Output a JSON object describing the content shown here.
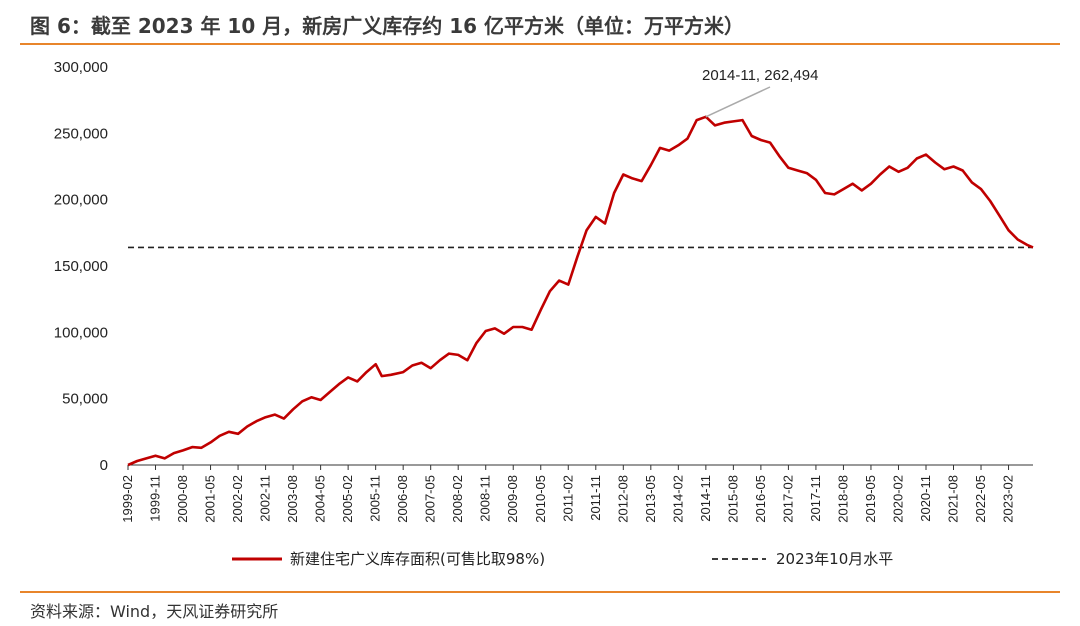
{
  "header": {
    "title": "图 6：截至 2023 年 10 月，新房广义库存约 16 亿平方米（单位：万平方米）"
  },
  "footer": {
    "source": "资料来源：Wind，天风证券研究所"
  },
  "colors": {
    "series_main": "#c00000",
    "reference_line": "#222222",
    "accent_rule": "#e8852b"
  },
  "chart_data": {
    "type": "line",
    "title": "",
    "ylim": [
      0,
      300000
    ],
    "y_ticks": [
      0,
      50000,
      100000,
      150000,
      200000,
      250000,
      300000
    ],
    "y_tick_labels": [
      "0",
      "50,000",
      "100,000",
      "150,000",
      "200,000",
      "250,000",
      "300,000"
    ],
    "x_range": [
      "1999-02",
      "2023-10"
    ],
    "x_tick_labels": [
      "1999-02",
      "1999-11",
      "2000-08",
      "2001-05",
      "2002-02",
      "2002-11",
      "2003-08",
      "2004-05",
      "2005-02",
      "2005-11",
      "2006-08",
      "2007-05",
      "2008-02",
      "2008-11",
      "2009-08",
      "2010-05",
      "2011-02",
      "2011-11",
      "2012-08",
      "2013-05",
      "2014-02",
      "2014-11",
      "2015-08",
      "2016-05",
      "2017-02",
      "2017-11",
      "2018-08",
      "2019-05",
      "2020-02",
      "2020-11",
      "2021-08",
      "2022-05",
      "2023-02"
    ],
    "grid": false,
    "legend_position": "bottom",
    "series": [
      {
        "name": "新建住宅广义库存面积(可售比取98%)",
        "style": "solid",
        "points": [
          [
            "1999-02",
            0
          ],
          [
            "1999-05",
            3000
          ],
          [
            "1999-08",
            5000
          ],
          [
            "1999-11",
            7000
          ],
          [
            "2000-02",
            5000
          ],
          [
            "2000-05",
            9000
          ],
          [
            "2000-08",
            11000
          ],
          [
            "2000-11",
            13500
          ],
          [
            "2001-02",
            13000
          ],
          [
            "2001-05",
            17000
          ],
          [
            "2001-08",
            22000
          ],
          [
            "2001-11",
            25000
          ],
          [
            "2002-02",
            23500
          ],
          [
            "2002-05",
            29000
          ],
          [
            "2002-08",
            33000
          ],
          [
            "2002-11",
            36000
          ],
          [
            "2003-02",
            38000
          ],
          [
            "2003-05",
            35000
          ],
          [
            "2003-08",
            42000
          ],
          [
            "2003-11",
            48000
          ],
          [
            "2004-02",
            51000
          ],
          [
            "2004-05",
            49000
          ],
          [
            "2004-08",
            55000
          ],
          [
            "2004-11",
            61000
          ],
          [
            "2005-02",
            66000
          ],
          [
            "2005-05",
            63000
          ],
          [
            "2005-08",
            70000
          ],
          [
            "2005-11",
            76000
          ],
          [
            "2006-01",
            67000
          ],
          [
            "2006-04",
            68000
          ],
          [
            "2006-08",
            70000
          ],
          [
            "2006-11",
            75000
          ],
          [
            "2007-02",
            77000
          ],
          [
            "2007-05",
            73000
          ],
          [
            "2007-08",
            79000
          ],
          [
            "2007-11",
            84000
          ],
          [
            "2008-02",
            83000
          ],
          [
            "2008-05",
            79000
          ],
          [
            "2008-08",
            92000
          ],
          [
            "2008-11",
            101000
          ],
          [
            "2009-02",
            103000
          ],
          [
            "2009-05",
            99000
          ],
          [
            "2009-08",
            104000
          ],
          [
            "2009-11",
            104000
          ],
          [
            "2010-02",
            102000
          ],
          [
            "2010-05",
            117000
          ],
          [
            "2010-08",
            131000
          ],
          [
            "2010-11",
            139000
          ],
          [
            "2011-02",
            136000
          ],
          [
            "2011-05",
            157000
          ],
          [
            "2011-08",
            177000
          ],
          [
            "2011-11",
            187000
          ],
          [
            "2012-02",
            182000
          ],
          [
            "2012-05",
            205000
          ],
          [
            "2012-08",
            219000
          ],
          [
            "2012-11",
            216000
          ],
          [
            "2013-02",
            214000
          ],
          [
            "2013-05",
            226000
          ],
          [
            "2013-08",
            239000
          ],
          [
            "2013-11",
            237000
          ],
          [
            "2014-02",
            241000
          ],
          [
            "2014-05",
            246000
          ],
          [
            "2014-08",
            260000
          ],
          [
            "2014-11",
            262494
          ],
          [
            "2015-02",
            256000
          ],
          [
            "2015-05",
            258000
          ],
          [
            "2015-08",
            259000
          ],
          [
            "2015-11",
            260000
          ],
          [
            "2016-02",
            248000
          ],
          [
            "2016-05",
            245000
          ],
          [
            "2016-08",
            243000
          ],
          [
            "2016-11",
            233000
          ],
          [
            "2017-02",
            224000
          ],
          [
            "2017-05",
            222000
          ],
          [
            "2017-08",
            220000
          ],
          [
            "2017-11",
            215000
          ],
          [
            "2018-02",
            205000
          ],
          [
            "2018-05",
            204000
          ],
          [
            "2018-08",
            208000
          ],
          [
            "2018-11",
            212000
          ],
          [
            "2019-02",
            207000
          ],
          [
            "2019-05",
            212000
          ],
          [
            "2019-08",
            219000
          ],
          [
            "2019-11",
            225000
          ],
          [
            "2020-02",
            221000
          ],
          [
            "2020-05",
            224000
          ],
          [
            "2020-08",
            231000
          ],
          [
            "2020-11",
            234000
          ],
          [
            "2021-02",
            228000
          ],
          [
            "2021-05",
            223000
          ],
          [
            "2021-08",
            225000
          ],
          [
            "2021-11",
            222000
          ],
          [
            "2022-02",
            213000
          ],
          [
            "2022-05",
            208000
          ],
          [
            "2022-08",
            199000
          ],
          [
            "2022-11",
            188000
          ],
          [
            "2023-02",
            177000
          ],
          [
            "2023-05",
            170000
          ],
          [
            "2023-08",
            166000
          ],
          [
            "2023-10",
            164000
          ]
        ]
      },
      {
        "name": "2023年10月水平",
        "style": "dashed",
        "value": 164000
      }
    ],
    "annotations": [
      {
        "text": "2014-11, 262,494",
        "x": "2014-11",
        "y": 262494
      }
    ]
  }
}
